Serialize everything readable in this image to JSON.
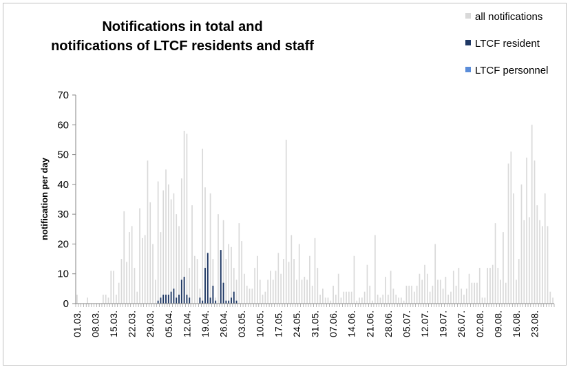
{
  "chart_data": {
    "type": "bar",
    "title": [
      "Notifications in total and",
      "notifications of LTCF residents and staff"
    ],
    "ylabel": "notification per day",
    "xlabel": "",
    "ylim": [
      0,
      70
    ],
    "yticks": [
      0,
      10,
      20,
      30,
      40,
      50,
      60,
      70
    ],
    "start_date": "01.03.",
    "xtick_labels": [
      "01.03.",
      "08.03.",
      "15.03.",
      "22.03.",
      "29.03.",
      "05.04.",
      "12.04.",
      "19.04.",
      "26.04.",
      "03.05.",
      "10.05.",
      "17.05.",
      "24.05.",
      "31.05.",
      "07.06.",
      "14.06.",
      "21.06.",
      "28.06.",
      "05.07.",
      "12.07.",
      "19.07.",
      "26.07.",
      "02.08.",
      "09.08.",
      "16.08.",
      "23.08."
    ],
    "legend_position": "top-right",
    "series": [
      {
        "name": "all notifications",
        "color": "#d9d9d9",
        "values": [
          3,
          0,
          0,
          0,
          2,
          0,
          0,
          0,
          0,
          0,
          3,
          3,
          2,
          11,
          11,
          3,
          7,
          15,
          31,
          14,
          24,
          26,
          12,
          4,
          32,
          22,
          23,
          48,
          34,
          20,
          8,
          41,
          24,
          38,
          45,
          40,
          35,
          37,
          30,
          26,
          42,
          58,
          57,
          12,
          33,
          16,
          15,
          5,
          52,
          39,
          17,
          37,
          15,
          2,
          30,
          15,
          28,
          15,
          20,
          19,
          12,
          8,
          27,
          21,
          10,
          6,
          5,
          5,
          12,
          16,
          8,
          3,
          4,
          8,
          11,
          8,
          11,
          17,
          10,
          15,
          55,
          14,
          23,
          15,
          8,
          20,
          8,
          9,
          8,
          16,
          6,
          22,
          12,
          3,
          5,
          2,
          2,
          1,
          6,
          3,
          10,
          2,
          4,
          4,
          4,
          4,
          16,
          1,
          2,
          2,
          4,
          13,
          6,
          1,
          23,
          3,
          2,
          3,
          9,
          3,
          11,
          5,
          3,
          2,
          2,
          1,
          6,
          6,
          6,
          4,
          6,
          10,
          8,
          13,
          10,
          4,
          6,
          20,
          8,
          8,
          5,
          9,
          3,
          4,
          11,
          6,
          12,
          5,
          3,
          5,
          10,
          7,
          7,
          7,
          12,
          2,
          2,
          12,
          12,
          13,
          27,
          12,
          8,
          24,
          7,
          47,
          51,
          37,
          8,
          15,
          40,
          28,
          49,
          29,
          60,
          48,
          33,
          28,
          26,
          37,
          26,
          4,
          2
        ]
      },
      {
        "name": "LTCF resident",
        "color": "#1f3864",
        "values": [
          0,
          0,
          0,
          0,
          0,
          0,
          0,
          0,
          0,
          0,
          0,
          0,
          0,
          0,
          0,
          0,
          0,
          0,
          0,
          0,
          0,
          0,
          0,
          0,
          0,
          0,
          0,
          0,
          0,
          0,
          0,
          1,
          2,
          3,
          3,
          3,
          4,
          5,
          2,
          3,
          8,
          9,
          3,
          2,
          0,
          0,
          0,
          2,
          1,
          12,
          17,
          2,
          6,
          1,
          0,
          18,
          7,
          1,
          1,
          2,
          4,
          1,
          0,
          0,
          0,
          0,
          0,
          0,
          0,
          0,
          0,
          0,
          0,
          0,
          0,
          0,
          0,
          0,
          0,
          0,
          0,
          0,
          0,
          0,
          0,
          0,
          0,
          0,
          0,
          0,
          0,
          0,
          0,
          0,
          0,
          0,
          0,
          0,
          0,
          0,
          0,
          0,
          0,
          0,
          0,
          0,
          0,
          0,
          0,
          0,
          0,
          0,
          0,
          0,
          0,
          0,
          0,
          0,
          0,
          0,
          0,
          0,
          0,
          0,
          0,
          0,
          0,
          0,
          0,
          0,
          0,
          0,
          0,
          0,
          0,
          0,
          0,
          0,
          0,
          0,
          0,
          0,
          0,
          0,
          0,
          0,
          0,
          0,
          0,
          0,
          0,
          0,
          0,
          0,
          0,
          0,
          0,
          0,
          0,
          0,
          0,
          0,
          0,
          0,
          0,
          0,
          0,
          0,
          0,
          0,
          0,
          0,
          0,
          0,
          0,
          0,
          0,
          0,
          0,
          0,
          0,
          0,
          0,
          0
        ]
      },
      {
        "name": "LTCF personnel",
        "color": "#5b8dd9",
        "values": [
          0,
          0,
          0,
          0,
          0,
          0,
          0,
          0,
          0,
          0,
          0,
          0,
          0,
          0,
          0,
          0,
          0,
          0,
          0,
          0,
          0,
          0,
          0,
          0,
          0,
          0,
          0,
          0,
          0,
          0,
          0,
          0,
          0,
          0,
          0,
          0,
          0,
          0,
          0,
          0,
          0,
          0,
          0,
          0,
          0,
          0,
          0,
          0,
          0,
          0,
          0,
          0,
          0,
          0,
          0,
          0,
          0,
          0,
          0,
          0,
          0,
          0,
          0,
          0,
          0,
          0,
          0,
          0,
          0,
          0,
          0,
          0,
          0,
          0,
          0,
          0,
          0,
          0,
          0,
          0,
          0,
          0,
          0,
          0,
          0,
          0,
          0,
          0,
          0,
          0,
          0,
          0,
          0,
          0,
          0,
          0,
          0,
          0,
          0,
          0,
          0,
          0,
          0,
          0,
          0,
          0,
          0,
          0,
          0,
          0,
          0,
          0,
          0,
          0,
          0,
          0,
          0,
          0,
          0,
          0,
          0,
          0,
          0,
          0,
          0,
          0,
          0,
          0,
          0,
          0,
          0,
          0,
          0,
          0,
          0,
          0,
          0,
          0,
          0,
          0,
          0,
          0,
          0,
          0,
          0,
          0,
          0,
          0,
          0,
          0,
          0,
          0,
          0,
          0,
          0,
          0,
          0,
          0,
          0,
          0,
          0,
          0,
          0,
          0,
          0,
          0,
          0,
          0,
          0,
          0,
          0,
          0,
          0,
          0,
          0,
          0,
          0,
          0,
          0,
          0,
          0,
          0,
          0,
          0
        ]
      }
    ],
    "grid": false
  }
}
